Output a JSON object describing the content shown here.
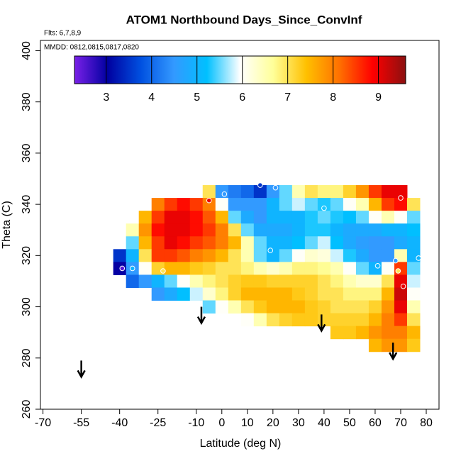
{
  "chart_data": {
    "type": "heatmap",
    "title": "ATOM1 Northbound Days_Since_ConvInf",
    "subtitle": "Flts: 6,7,8,9",
    "annotation": "MMDD: 0812,0815,0817,0820",
    "xlabel": "Latitude (deg N)",
    "ylabel": "Theta (C)",
    "xlim": [
      -71,
      85
    ],
    "ylim": [
      260,
      404
    ],
    "xticks": [
      -70,
      -55,
      -40,
      -25,
      -10,
      0,
      10,
      20,
      30,
      40,
      50,
      60,
      70,
      80
    ],
    "yticks": [
      260,
      280,
      300,
      320,
      340,
      360,
      380,
      400
    ],
    "x": [
      -40,
      -35,
      -30,
      -25,
      -20,
      -15,
      -10,
      -5,
      0,
      5,
      10,
      15,
      20,
      25,
      30,
      35,
      40,
      45,
      50,
      55,
      60,
      65,
      70,
      75
    ],
    "y": [
      345,
      340,
      335,
      330,
      325,
      320,
      315,
      310,
      305,
      300,
      295,
      290,
      285
    ],
    "z": [
      [
        null,
        null,
        null,
        null,
        null,
        null,
        null,
        7,
        4.5,
        4.2,
        4,
        3.5,
        4.5,
        5.5,
        6.5,
        7,
        6.8,
        6.8,
        7.2,
        7.8,
        8.5,
        9,
        9,
        null
      ],
      [
        null,
        null,
        null,
        8,
        8.5,
        8.8,
        8.5,
        8,
        6,
        4.5,
        4.5,
        4.5,
        5,
        5.5,
        5.8,
        5.5,
        5.3,
        5.5,
        6,
        6.5,
        7.5,
        8.5,
        8.8,
        7
      ],
      [
        null,
        null,
        7.5,
        8.5,
        9,
        9,
        8.8,
        8.3,
        7.5,
        5.5,
        4.8,
        4.5,
        5,
        5,
        5,
        5.3,
        5.5,
        5.3,
        5.2,
        5.5,
        6,
        6.5,
        6,
        5.5
      ],
      [
        null,
        6.5,
        7.8,
        8.8,
        9,
        9,
        8.8,
        8.5,
        8,
        7,
        5.5,
        4.8,
        4.8,
        4.8,
        5,
        5.3,
        5.3,
        5,
        4.8,
        4.8,
        4.8,
        5,
        5,
        5.2
      ],
      [
        null,
        5.5,
        7.5,
        8.5,
        9,
        8.8,
        8.5,
        8.3,
        8,
        7.5,
        6.5,
        5.5,
        5,
        5,
        5.2,
        5.5,
        5.8,
        5.2,
        4.8,
        4.6,
        4.5,
        4.5,
        4.8,
        5
      ],
      [
        3.5,
        5,
        7,
        8.5,
        8.5,
        8.3,
        8,
        7.8,
        7.5,
        7,
        6.5,
        5.5,
        5,
        5.5,
        6,
        6.3,
        6.2,
        5.8,
        5.3,
        4.8,
        4.5,
        4.5,
        6.5,
        5
      ],
      [
        3,
        4.5,
        6,
        7.2,
        7.5,
        7.5,
        7.3,
        7.2,
        7,
        7,
        6.8,
        6.5,
        6.3,
        6.5,
        6.8,
        6.8,
        6.7,
        6.5,
        6,
        5.5,
        5,
        6,
        8.5,
        5.5
      ],
      [
        null,
        4,
        4.5,
        5,
        5.5,
        6,
        6.5,
        6.8,
        7,
        7.2,
        7.3,
        7.3,
        7.2,
        7.2,
        7.2,
        7.2,
        7,
        6.8,
        6.5,
        6.3,
        6.3,
        7,
        9,
        5.8
      ],
      [
        null,
        null,
        null,
        4.5,
        4.8,
        5.2,
        5.8,
        6.3,
        6.8,
        7.2,
        7.5,
        7.5,
        7.5,
        7.5,
        7.3,
        7.2,
        7,
        7,
        6.8,
        6.8,
        6.8,
        7.5,
        9.2,
        6
      ],
      [
        null,
        null,
        null,
        null,
        null,
        null,
        null,
        5.5,
        6,
        6.5,
        7,
        7.3,
        7.5,
        7.5,
        7.5,
        7.3,
        7.2,
        7,
        7,
        7,
        7.2,
        7.8,
        9,
        6.5
      ],
      [
        null,
        null,
        null,
        null,
        null,
        null,
        null,
        null,
        null,
        null,
        6,
        6.5,
        7,
        7.2,
        7.3,
        7.3,
        7.2,
        7.2,
        7.2,
        7.2,
        7.5,
        8,
        8.5,
        7
      ],
      [
        null,
        null,
        null,
        null,
        null,
        null,
        null,
        null,
        null,
        null,
        null,
        null,
        null,
        null,
        null,
        null,
        null,
        7.3,
        7.3,
        7.5,
        7.8,
        8,
        8,
        7.5
      ],
      [
        null,
        null,
        null,
        null,
        null,
        null,
        null,
        null,
        null,
        null,
        null,
        null,
        null,
        null,
        null,
        null,
        null,
        null,
        null,
        null,
        7.5,
        7.8,
        7.8,
        7.3
      ]
    ],
    "colorscale": {
      "colors": [
        "#7a20e8",
        "#0000a0",
        "#0050e0",
        "#3399ff",
        "#00c0ff",
        "#ffffff",
        "#ffff99",
        "#ffc000",
        "#ff7000",
        "#ff0000",
        "#8b1010"
      ],
      "range": [
        2.3,
        9.6
      ],
      "ticks": [
        3,
        4,
        5,
        6,
        7,
        8,
        9
      ]
    },
    "points": {
      "x": [
        -39,
        -35,
        -23,
        -5,
        1,
        15,
        21,
        19,
        40,
        61,
        68,
        69,
        71,
        70,
        77
      ],
      "y": [
        315,
        315,
        314,
        341.5,
        344,
        347.5,
        346.5,
        322,
        338.5,
        316,
        318,
        314,
        308,
        342.5,
        319
      ],
      "values": [
        2.5,
        5,
        7,
        9,
        4.5,
        3.5,
        4.5,
        5,
        5.3,
        5,
        4.5,
        7,
        9,
        9,
        5
      ]
    },
    "arrows": {
      "x": [
        -55,
        -8,
        39,
        67
      ],
      "y": [
        279,
        300,
        297,
        286
      ]
    }
  }
}
